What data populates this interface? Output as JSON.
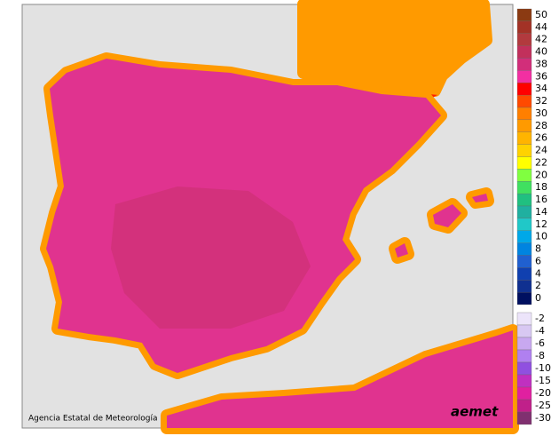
{
  "credit": "Agencia Estatal de Meteorología",
  "logo": "aemet",
  "legend": {
    "entries": [
      {
        "label": "50",
        "color": "#8b3a12"
      },
      {
        "label": "44",
        "color": "#a33226"
      },
      {
        "label": "42",
        "color": "#b23a3e"
      },
      {
        "label": "40",
        "color": "#c2305c"
      },
      {
        "label": "38",
        "color": "#d22e7a"
      },
      {
        "label": "36",
        "color": "#f22fa2"
      },
      {
        "label": "34",
        "color": "#ff0000"
      },
      {
        "label": "32",
        "color": "#ff4a00"
      },
      {
        "label": "30",
        "color": "#ff7f00"
      },
      {
        "label": "28",
        "color": "#ff9a00"
      },
      {
        "label": "26",
        "color": "#ffb400"
      },
      {
        "label": "24",
        "color": "#ffd200"
      },
      {
        "label": "22",
        "color": "#ffff00"
      },
      {
        "label": "20",
        "color": "#80ff40"
      },
      {
        "label": "18",
        "color": "#40e060"
      },
      {
        "label": "16",
        "color": "#20c080"
      },
      {
        "label": "14",
        "color": "#20b0a0"
      },
      {
        "label": "12",
        "color": "#20c8c8"
      },
      {
        "label": "10",
        "color": "#00a8e8"
      },
      {
        "label": "8",
        "color": "#0084e0"
      },
      {
        "label": "6",
        "color": "#2060d0"
      },
      {
        "label": "4",
        "color": "#1040b0"
      },
      {
        "label": "2",
        "color": "#103090"
      },
      {
        "label": "0",
        "color": "#001060"
      },
      {
        "label": "-2",
        "color": "#ece4fa"
      },
      {
        "label": "-4",
        "color": "#d8c8f2"
      },
      {
        "label": "-6",
        "color": "#c8a8f0"
      },
      {
        "label": "-8",
        "color": "#b080f0"
      },
      {
        "label": "-10",
        "color": "#9050e0"
      },
      {
        "label": "-15",
        "color": "#c030c0"
      },
      {
        "label": "-20",
        "color": "#e020a0"
      },
      {
        "label": "-25",
        "color": "#c0208a"
      },
      {
        "label": "-30",
        "color": "#803070"
      }
    ]
  }
}
